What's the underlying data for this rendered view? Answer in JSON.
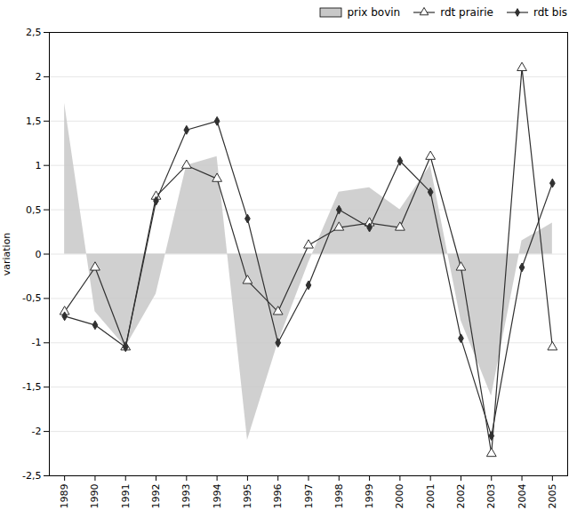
{
  "chart_data": {
    "type": "line",
    "x": [
      1989,
      1990,
      1991,
      1992,
      1993,
      1994,
      1995,
      1996,
      1997,
      1998,
      1999,
      2000,
      2001,
      2002,
      2003,
      2004,
      2005
    ],
    "series": [
      {
        "name": "prix bovin",
        "type": "area",
        "color": "#c8c8c8",
        "values": [
          1.7,
          -0.65,
          -1.05,
          -0.45,
          1.0,
          1.1,
          -2.1,
          -1.0,
          -0.1,
          0.7,
          0.75,
          0.5,
          1.0,
          -0.75,
          -1.6,
          0.15,
          0.35
        ]
      },
      {
        "name": "rdt prairie",
        "type": "line",
        "color": "#303030",
        "marker": "open-triangle",
        "values": [
          -0.65,
          -0.15,
          -1.05,
          0.65,
          1.0,
          0.85,
          -0.3,
          -0.65,
          0.1,
          0.3,
          0.35,
          0.3,
          1.1,
          -0.15,
          -2.25,
          2.1,
          -1.05
        ]
      },
      {
        "name": "rdt bis",
        "type": "line",
        "color": "#303030",
        "marker": "diamond",
        "values": [
          -0.7,
          -0.8,
          -1.05,
          0.6,
          1.4,
          1.5,
          0.4,
          -1.0,
          -0.35,
          0.5,
          0.3,
          1.05,
          0.7,
          -0.95,
          -2.05,
          -0.15,
          0.8
        ]
      }
    ],
    "ylabel": "variation",
    "xlim": [
      1988.5,
      2005.5
    ],
    "xticks": [
      1989,
      1990,
      1991,
      1992,
      1993,
      1994,
      1995,
      1996,
      1997,
      1998,
      1999,
      2000,
      2001,
      2002,
      2003,
      2004,
      2005
    ],
    "ylim": [
      -2.5,
      2.5
    ],
    "yticks": [
      {
        "value": -2.5,
        "label": "-2,5"
      },
      -2,
      {
        "value": -1.5,
        "label": "-1,5"
      },
      -1,
      {
        "value": -0.5,
        "label": "-0,5"
      },
      0,
      {
        "value": 0.5,
        "label": "0,5"
      },
      1,
      {
        "value": 1.5,
        "label": "1,5"
      },
      2,
      {
        "value": 2.5,
        "label": "2,5"
      }
    ],
    "grid": true,
    "legend": "upper right"
  }
}
